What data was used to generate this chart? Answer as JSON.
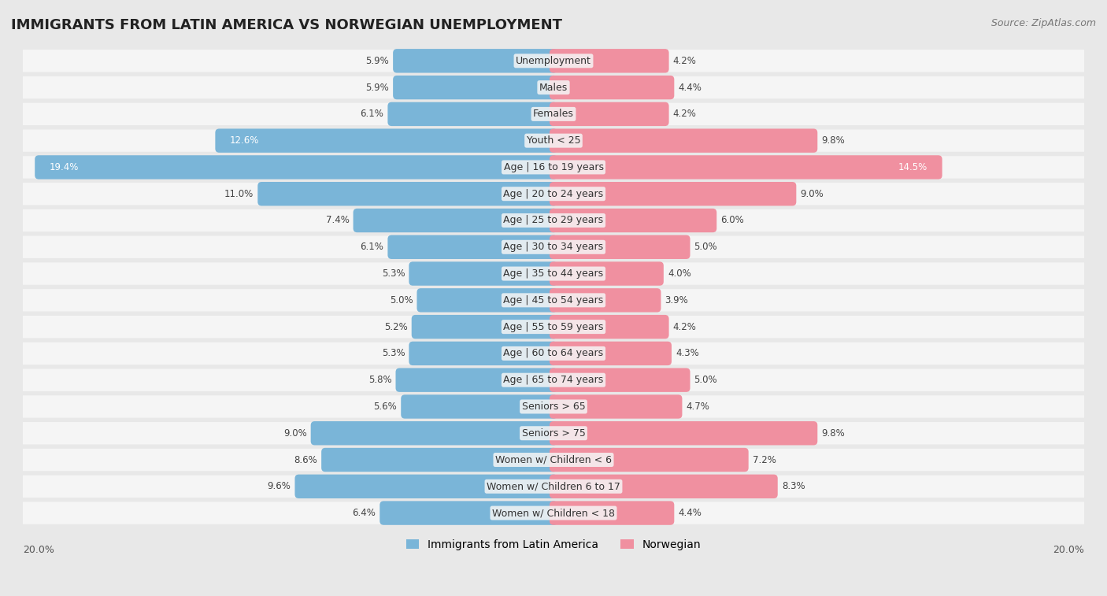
{
  "title": "IMMIGRANTS FROM LATIN AMERICA VS NORWEGIAN UNEMPLOYMENT",
  "source": "Source: ZipAtlas.com",
  "categories": [
    "Unemployment",
    "Males",
    "Females",
    "Youth < 25",
    "Age | 16 to 19 years",
    "Age | 20 to 24 years",
    "Age | 25 to 29 years",
    "Age | 30 to 34 years",
    "Age | 35 to 44 years",
    "Age | 45 to 54 years",
    "Age | 55 to 59 years",
    "Age | 60 to 64 years",
    "Age | 65 to 74 years",
    "Seniors > 65",
    "Seniors > 75",
    "Women w/ Children < 6",
    "Women w/ Children 6 to 17",
    "Women w/ Children < 18"
  ],
  "left_values": [
    5.9,
    5.9,
    6.1,
    12.6,
    19.4,
    11.0,
    7.4,
    6.1,
    5.3,
    5.0,
    5.2,
    5.3,
    5.8,
    5.6,
    9.0,
    8.6,
    9.6,
    6.4
  ],
  "right_values": [
    4.2,
    4.4,
    4.2,
    9.8,
    14.5,
    9.0,
    6.0,
    5.0,
    4.0,
    3.9,
    4.2,
    4.3,
    5.0,
    4.7,
    9.8,
    7.2,
    8.3,
    4.4
  ],
  "left_color": "#7ab5d8",
  "right_color": "#f090a0",
  "left_label": "Immigrants from Latin America",
  "right_label": "Norwegian",
  "axis_limit": 20.0,
  "background_color": "#e8e8e8",
  "bar_bg_color": "#f5f5f5",
  "title_fontsize": 13,
  "source_fontsize": 9,
  "label_fontsize": 9,
  "value_fontsize": 8.5,
  "legend_fontsize": 10,
  "axis_label_fontsize": 9
}
